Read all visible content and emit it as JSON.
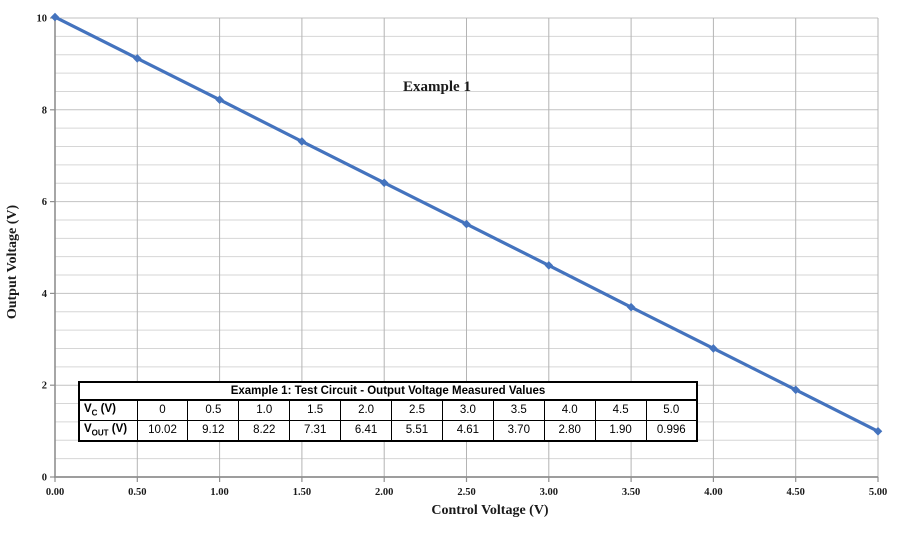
{
  "chart_data": {
    "type": "line",
    "title": "Example 1",
    "xlabel": "Control Voltage (V)",
    "ylabel": "Output Voltage (V)",
    "x": [
      0,
      0.5,
      1.0,
      1.5,
      2.0,
      2.5,
      3.0,
      3.5,
      4.0,
      4.5,
      5.0
    ],
    "y": [
      10.02,
      9.12,
      8.22,
      7.31,
      6.41,
      5.51,
      4.61,
      3.7,
      2.8,
      1.9,
      0.996
    ],
    "xlim": [
      0,
      5
    ],
    "ylim": [
      0,
      10
    ],
    "x_ticks": [
      "0.00",
      "0.50",
      "1.00",
      "1.50",
      "2.00",
      "2.50",
      "3.00",
      "3.50",
      "4.00",
      "4.50",
      "5.00"
    ],
    "y_ticks": [
      "0",
      "2",
      "4",
      "6",
      "8",
      "10"
    ],
    "x_grid_step": 0.5,
    "y_major_step": 2,
    "y_minor_step": 0.4,
    "grid": true,
    "legend_position": "none",
    "marker": "diamond",
    "colors": {
      "series_line": "#4473BE",
      "grid_minor_h": "#d6d6d6",
      "grid_major_h": "#c2c2c2",
      "grid_v": "#b4b4b4",
      "axis": "#8f8f8f",
      "text": "#1a1a1a",
      "table_border": "#000000"
    }
  },
  "table": {
    "title": "Example 1: Test Circuit - Output Voltage Measured Values",
    "rows": [
      {
        "label": {
          "base": "V",
          "sub": "C",
          "suffix": " (V)"
        },
        "values": [
          "0",
          "0.5",
          "1.0",
          "1.5",
          "2.0",
          "2.5",
          "3.0",
          "3.5",
          "4.0",
          "4.5",
          "5.0"
        ]
      },
      {
        "label": {
          "base": "V",
          "sub": "OUT",
          "suffix": " (V)"
        },
        "values": [
          "10.02",
          "9.12",
          "8.22",
          "7.31",
          "6.41",
          "5.51",
          "4.61",
          "3.70",
          "2.80",
          "1.90",
          "0.996"
        ]
      }
    ]
  }
}
